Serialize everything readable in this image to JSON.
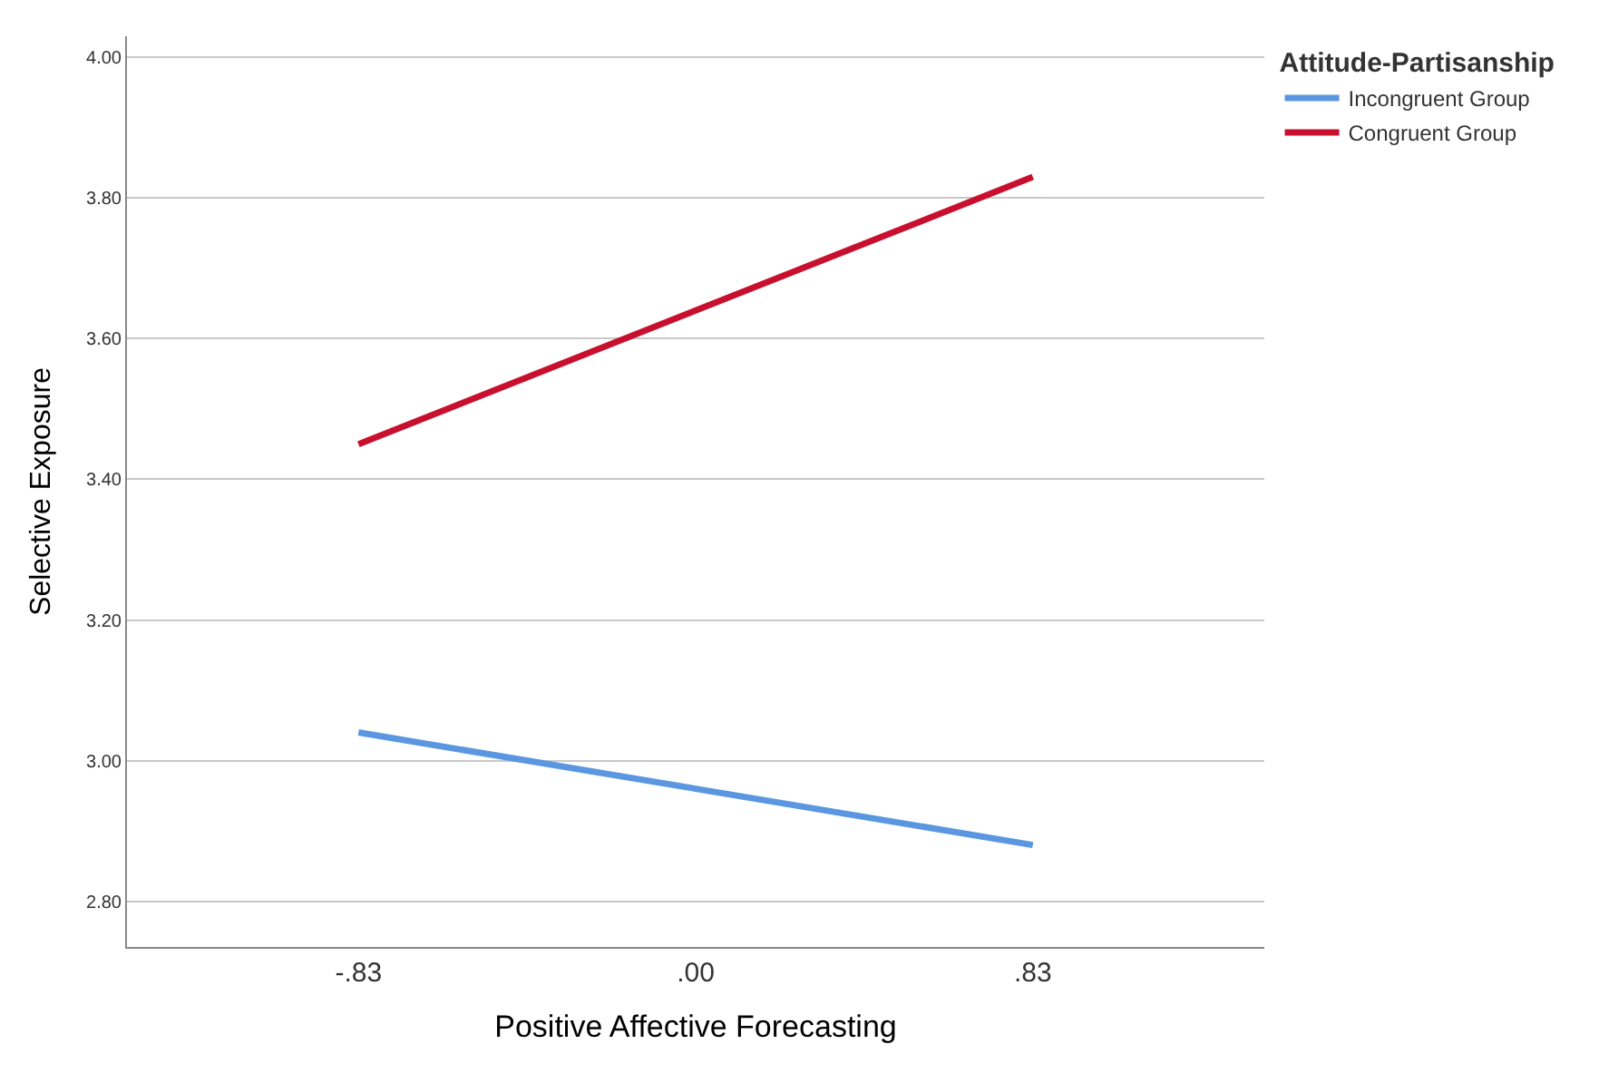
{
  "chart_data": {
    "type": "line",
    "xlabel": "Positive Affective Forecasting",
    "ylabel": "Selective Exposure",
    "legend_title": "Attitude-Partisanship",
    "x": [
      -0.83,
      0.83
    ],
    "series": [
      {
        "name": "Incongruent Group",
        "color": "#5b97e0",
        "values": [
          3.04,
          2.88
        ]
      },
      {
        "name": "Congruent Group",
        "color": "#c8102e",
        "values": [
          3.45,
          3.83
        ]
      }
    ],
    "xlim": [
      -1.4,
      1.4
    ],
    "xticks": [
      {
        "value": -0.83,
        "label": "-.83"
      },
      {
        "value": 0,
        "label": ".00"
      },
      {
        "value": 0.83,
        "label": ".83"
      }
    ],
    "ylim": [
      2.735,
      4.03
    ],
    "yticks": [
      {
        "value": 2.8,
        "label": "2.80"
      },
      {
        "value": 3.0,
        "label": "3.00"
      },
      {
        "value": 3.2,
        "label": "3.20"
      },
      {
        "value": 3.4,
        "label": "3.40"
      },
      {
        "value": 3.6,
        "label": "3.60"
      },
      {
        "value": 3.8,
        "label": "3.80"
      },
      {
        "value": 4.0,
        "label": "4.00"
      }
    ],
    "grid": "y",
    "legend": "top right",
    "marker": "none",
    "line_style": "solid"
  }
}
